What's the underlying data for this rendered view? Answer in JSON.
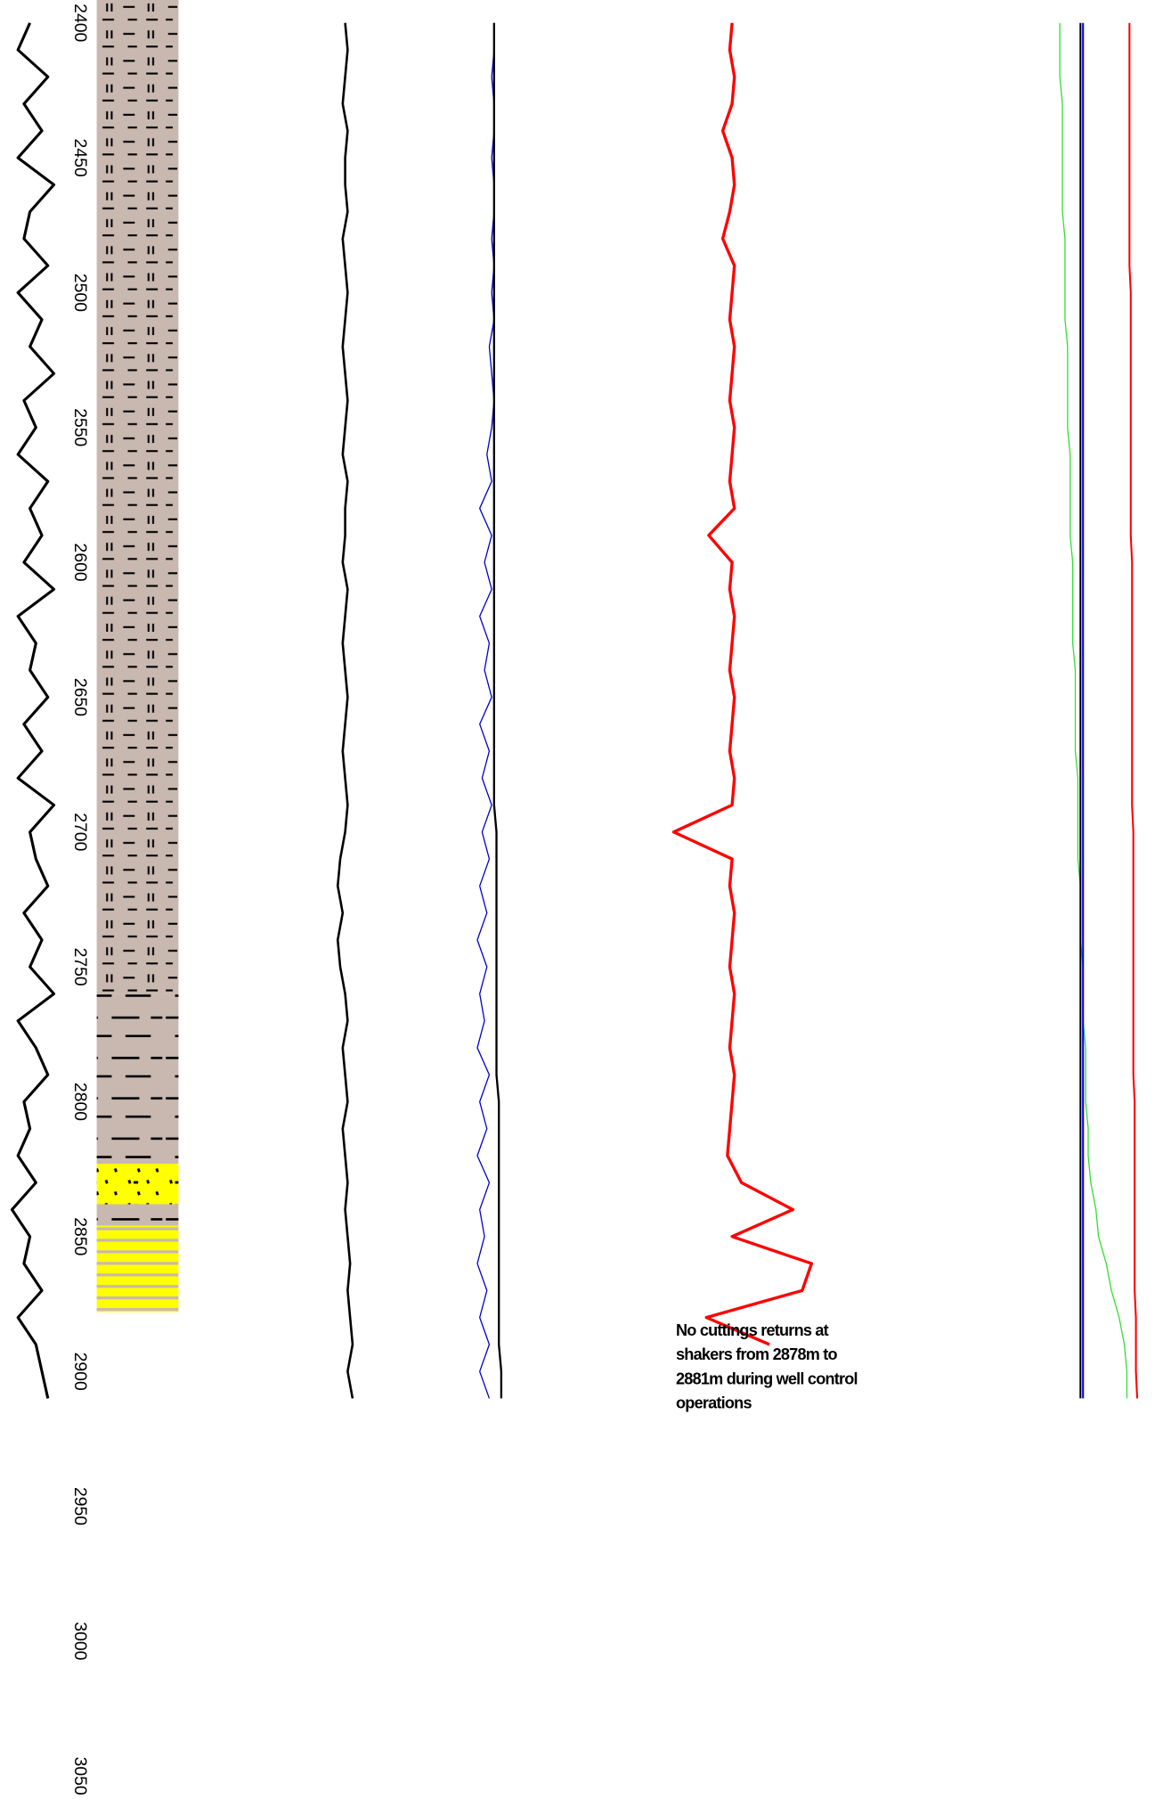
{
  "chart_data": {
    "type": "well-log",
    "ylim": [
      2391.5,
      3061.5
    ],
    "yticks": [
      2400,
      2450,
      2500,
      2550,
      2600,
      2650,
      2700,
      2750,
      2800,
      2850,
      2900,
      2950,
      3000,
      3050
    ],
    "depth": [
      2400,
      2410,
      2420,
      2430,
      2440,
      2450,
      2460,
      2470,
      2480,
      2490,
      2500,
      2510,
      2520,
      2530,
      2540,
      2550,
      2560,
      2570,
      2580,
      2590,
      2600,
      2610,
      2620,
      2630,
      2640,
      2650,
      2660,
      2670,
      2680,
      2690,
      2700,
      2710,
      2720,
      2730,
      2740,
      2750,
      2760,
      2770,
      2780,
      2790,
      2800,
      2810,
      2820,
      2830,
      2840,
      2850,
      2860,
      2870,
      2880,
      2890,
      2900,
      2910
    ],
    "annotation": [
      "No cuttings returns at",
      "shakers from 2878m to",
      "2881m during well control",
      "operations"
    ],
    "lithology": [
      {
        "top": 2391.5,
        "base": 2760,
        "color": "#c8b8b0",
        "pattern": "shale"
      },
      {
        "top": 2760,
        "base": 2823,
        "color": "#c8b8b0",
        "pattern": "dash"
      },
      {
        "top": 2823,
        "base": 2838,
        "color": "#ffff00",
        "pattern": "sand"
      },
      {
        "top": 2838,
        "base": 2846,
        "color": "#c8b8b0",
        "pattern": "dash"
      },
      {
        "top": 2846,
        "base": 2878,
        "color": "#ffff00",
        "pattern": "stripe"
      }
    ],
    "tracks": [
      {
        "xlim": [
          0,
          1
        ],
        "scale": "linear",
        "series": [
          {
            "color": "#000000",
            "width": 2.4,
            "values": [
              0.5,
              0.3,
              0.8,
              0.4,
              0.7,
              0.3,
              0.9,
              0.5,
              0.4,
              0.8,
              0.3,
              0.7,
              0.5,
              0.9,
              0.4,
              0.6,
              0.3,
              0.8,
              0.5,
              0.7,
              0.4,
              0.9,
              0.3,
              0.6,
              0.5,
              0.8,
              0.4,
              0.7,
              0.3,
              0.9,
              0.5,
              0.6,
              0.8,
              0.4,
              0.7,
              0.5,
              0.9,
              0.3,
              0.6,
              0.8,
              0.4,
              0.5,
              0.3,
              0.6,
              0.2,
              0.5,
              0.4,
              0.7,
              0.3,
              0.6,
              0.7,
              0.8
            ]
          }
        ]
      },
      {
        "xlim": [
          0,
          1
        ],
        "scale": "log",
        "series": [
          {
            "color": "#000000",
            "width": 2,
            "values": [
              0.65,
              0.66,
              0.65,
              0.64,
              0.66,
              0.65,
              0.65,
              0.66,
              0.64,
              0.65,
              0.66,
              0.65,
              0.64,
              0.65,
              0.66,
              0.65,
              0.64,
              0.66,
              0.65,
              0.65,
              0.64,
              0.66,
              0.65,
              0.64,
              0.65,
              0.66,
              0.65,
              0.64,
              0.65,
              0.66,
              0.65,
              0.63,
              0.62,
              0.64,
              0.62,
              0.63,
              0.65,
              0.66,
              0.64,
              0.65,
              0.66,
              0.64,
              0.65,
              0.66,
              0.65,
              0.66,
              0.67,
              0.66,
              0.67,
              0.68,
              0.66,
              0.68
            ]
          }
        ]
      },
      {
        "xlim": [
          0,
          1
        ],
        "scale": "log",
        "series": [
          {
            "color": "#0000cc",
            "width": 1,
            "values": [
              0.26,
              0.26,
              0.25,
              0.26,
              0.26,
              0.25,
              0.26,
              0.26,
              0.25,
              0.26,
              0.25,
              0.26,
              0.24,
              0.25,
              0.26,
              0.25,
              0.23,
              0.25,
              0.2,
              0.25,
              0.22,
              0.25,
              0.2,
              0.24,
              0.22,
              0.25,
              0.2,
              0.24,
              0.21,
              0.25,
              0.21,
              0.24,
              0.2,
              0.23,
              0.19,
              0.23,
              0.2,
              0.22,
              0.19,
              0.24,
              0.2,
              0.23,
              0.19,
              0.24,
              0.2,
              0.22,
              0.19,
              0.23,
              0.2,
              0.24,
              0.2,
              0.24
            ]
          },
          {
            "color": "#000000",
            "width": 1.8,
            "values": [
              0.26,
              0.26,
              0.26,
              0.26,
              0.26,
              0.26,
              0.26,
              0.26,
              0.26,
              0.26,
              0.26,
              0.26,
              0.26,
              0.26,
              0.26,
              0.26,
              0.26,
              0.26,
              0.26,
              0.26,
              0.26,
              0.26,
              0.26,
              0.26,
              0.26,
              0.26,
              0.26,
              0.26,
              0.26,
              0.26,
              0.27,
              0.27,
              0.27,
              0.27,
              0.27,
              0.27,
              0.27,
              0.27,
              0.27,
              0.27,
              0.28,
              0.28,
              0.28,
              0.28,
              0.28,
              0.28,
              0.28,
              0.28,
              0.28,
              0.28,
              0.29,
              0.29
            ]
          }
        ]
      },
      {
        "xlim": [
          0,
          1
        ],
        "scale": "log",
        "series": [
          {
            "color": "#ff0000",
            "width": 2.6,
            "values": [
              0.26,
              0.25,
              0.27,
              0.26,
              0.22,
              0.26,
              0.27,
              0.25,
              0.22,
              0.27,
              0.26,
              0.25,
              0.27,
              0.26,
              0.25,
              0.27,
              0.26,
              0.25,
              0.27,
              0.16,
              0.26,
              0.25,
              0.27,
              0.26,
              0.25,
              0.27,
              0.26,
              0.25,
              0.27,
              0.26,
              0.01,
              0.26,
              0.25,
              0.27,
              0.26,
              0.25,
              0.27,
              0.26,
              0.25,
              0.27,
              0.26,
              0.25,
              0.24,
              0.3,
              0.52,
              0.26,
              0.6,
              0.56,
              0.15,
              0.42,
              null,
              null
            ]
          }
        ]
      },
      {
        "xlim": [
          0,
          1
        ],
        "scale": "linear",
        "series": [
          {
            "color": "#33dd33",
            "width": 1,
            "values": [
              0.6,
              0.6,
              0.6,
              0.61,
              0.61,
              0.61,
              0.61,
              0.61,
              0.62,
              0.62,
              0.62,
              0.62,
              0.63,
              0.63,
              0.63,
              0.63,
              0.64,
              0.64,
              0.64,
              0.64,
              0.65,
              0.65,
              0.65,
              0.65,
              0.66,
              0.66,
              0.66,
              0.66,
              0.67,
              0.67,
              0.67,
              0.67,
              0.68,
              0.68,
              0.68,
              0.69,
              0.69,
              0.69,
              0.7,
              0.7,
              0.7,
              0.71,
              0.71,
              0.72,
              0.74,
              0.75,
              0.78,
              0.8,
              0.83,
              0.85,
              0.86,
              0.86
            ]
          },
          {
            "color": "#000000",
            "width": 1.6,
            "values": [
              0.68,
              0.68,
              0.68,
              0.68,
              0.68,
              0.68,
              0.68,
              0.68,
              0.68,
              0.68,
              0.68,
              0.68,
              0.68,
              0.68,
              0.68,
              0.68,
              0.68,
              0.68,
              0.68,
              0.68,
              0.68,
              0.68,
              0.68,
              0.68,
              0.68,
              0.68,
              0.68,
              0.68,
              0.68,
              0.68,
              0.68,
              0.68,
              0.68,
              0.68,
              0.68,
              0.68,
              0.68,
              0.68,
              0.68,
              0.68,
              0.68,
              0.68,
              0.68,
              0.68,
              0.68,
              0.68,
              0.68,
              0.68,
              0.68,
              0.68,
              0.68,
              0.68
            ]
          },
          {
            "color": "#0000ff",
            "width": 1.6,
            "values": [
              0.69,
              0.69,
              0.69,
              0.69,
              0.69,
              0.69,
              0.69,
              0.69,
              0.69,
              0.69,
              0.69,
              0.69,
              0.69,
              0.69,
              0.69,
              0.69,
              0.69,
              0.69,
              0.69,
              0.69,
              0.69,
              0.69,
              0.69,
              0.69,
              0.69,
              0.69,
              0.69,
              0.69,
              0.69,
              0.69,
              0.69,
              0.69,
              0.69,
              0.69,
              0.69,
              0.69,
              0.69,
              0.69,
              0.69,
              0.69,
              0.69,
              0.69,
              0.69,
              0.69,
              0.69,
              0.69,
              0.69,
              0.69,
              0.69,
              0.69,
              0.69,
              0.69
            ]
          },
          {
            "color": "#ff0000",
            "width": 1.6,
            "values": [
              0.87,
              0.87,
              0.87,
              0.87,
              0.87,
              0.87,
              0.87,
              0.87,
              0.87,
              0.87,
              0.875,
              0.875,
              0.875,
              0.875,
              0.875,
              0.875,
              0.875,
              0.875,
              0.875,
              0.875,
              0.88,
              0.88,
              0.88,
              0.88,
              0.88,
              0.88,
              0.88,
              0.88,
              0.88,
              0.88,
              0.885,
              0.885,
              0.885,
              0.885,
              0.885,
              0.885,
              0.885,
              0.885,
              0.885,
              0.885,
              0.89,
              0.89,
              0.89,
              0.89,
              0.89,
              0.89,
              0.89,
              0.89,
              0.895,
              0.895,
              0.895,
              0.9
            ]
          }
        ]
      }
    ]
  }
}
